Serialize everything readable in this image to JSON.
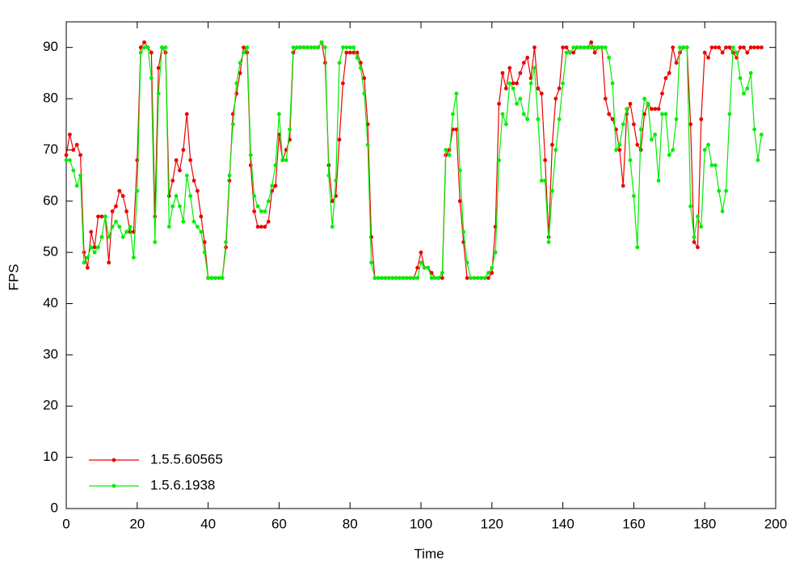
{
  "chart_data": {
    "type": "line",
    "x_label": "Time",
    "y_label": "FPS",
    "x": [
      0,
      1,
      2,
      3,
      4,
      5,
      6,
      7,
      8,
      9,
      10,
      11,
      12,
      13,
      14,
      15,
      16,
      17,
      18,
      19,
      20,
      21,
      22,
      23,
      24,
      25,
      26,
      27,
      28,
      29,
      30,
      31,
      32,
      33,
      34,
      35,
      36,
      37,
      38,
      39,
      40,
      41,
      42,
      43,
      44,
      45,
      46,
      47,
      48,
      49,
      50,
      51,
      52,
      53,
      54,
      55,
      56,
      57,
      58,
      59,
      60,
      61,
      62,
      63,
      64,
      65,
      66,
      67,
      68,
      69,
      70,
      71,
      72,
      73,
      74,
      75,
      76,
      77,
      78,
      79,
      80,
      81,
      82,
      83,
      84,
      85,
      86,
      87,
      88,
      89,
      90,
      91,
      92,
      93,
      94,
      95,
      96,
      97,
      98,
      99,
      100,
      101,
      102,
      103,
      104,
      105,
      106,
      107,
      108,
      109,
      110,
      111,
      112,
      113,
      114,
      115,
      116,
      117,
      118,
      119,
      120,
      121,
      122,
      123,
      124,
      125,
      126,
      127,
      128,
      129,
      130,
      131,
      132,
      133,
      134,
      135,
      136,
      137,
      138,
      139,
      140,
      141,
      142,
      143,
      144,
      145,
      146,
      147,
      148,
      149,
      150,
      151,
      152,
      153,
      154,
      155,
      156,
      157,
      158,
      159,
      160,
      161,
      162,
      163,
      164,
      165,
      166,
      167,
      168,
      169,
      170,
      171,
      172,
      173,
      174,
      175,
      176,
      177,
      178,
      179,
      180,
      181,
      182,
      183,
      184,
      185,
      186,
      187,
      188,
      189,
      190,
      191,
      192,
      193,
      194,
      195,
      196
    ],
    "series": [
      {
        "name": "1.5.5.60565",
        "color": "#ee0000",
        "values": [
          69,
          73,
          70,
          71,
          69,
          50,
          47,
          54,
          51,
          57,
          57,
          57,
          48,
          58,
          59,
          62,
          61,
          58,
          54,
          54,
          68,
          90,
          91,
          90,
          89,
          57,
          86,
          90,
          89,
          61,
          64,
          68,
          66,
          70,
          77,
          68,
          64,
          62,
          57,
          52,
          45,
          45,
          45,
          45,
          45,
          51,
          64,
          77,
          81,
          85,
          90,
          89,
          67,
          58,
          55,
          55,
          55,
          56,
          62,
          63,
          73,
          68,
          70,
          72,
          89,
          90,
          90,
          90,
          90,
          90,
          90,
          90,
          91,
          87,
          67,
          60,
          61,
          72,
          83,
          89,
          89,
          89,
          89,
          87,
          84,
          75,
          53,
          45,
          45,
          45,
          45,
          45,
          45,
          45,
          45,
          45,
          45,
          45,
          45,
          47,
          50,
          47,
          47,
          46,
          45,
          45,
          45,
          69,
          70,
          74,
          74,
          60,
          52,
          45,
          45,
          45,
          45,
          45,
          45,
          45,
          46,
          55,
          79,
          85,
          82,
          86,
          83,
          83,
          85,
          87,
          88,
          84,
          90,
          82,
          81,
          68,
          53,
          71,
          80,
          82,
          90,
          90,
          89,
          89,
          90,
          90,
          90,
          90,
          91,
          89,
          90,
          90,
          80,
          77,
          76,
          74,
          70,
          63,
          77,
          79,
          75,
          71,
          70,
          77,
          79,
          78,
          78,
          78,
          81,
          84,
          85,
          90,
          87,
          89,
          90,
          90,
          75,
          52,
          51,
          76,
          89,
          88,
          90,
          90,
          90,
          89,
          90,
          90,
          89,
          88,
          90,
          90,
          89,
          90,
          90,
          90,
          90
        ]
      },
      {
        "name": "1.5.6.1938",
        "color": "#00ee00",
        "values": [
          68,
          68,
          66,
          63,
          65,
          48,
          49,
          51,
          50,
          51,
          53,
          57,
          53,
          55,
          56,
          55,
          53,
          54,
          55,
          49,
          62,
          89,
          90,
          90,
          84,
          52,
          81,
          90,
          90,
          55,
          59,
          61,
          59,
          56,
          65,
          61,
          56,
          55,
          54,
          50,
          45,
          45,
          45,
          45,
          45,
          52,
          65,
          75,
          83,
          87,
          89,
          90,
          69,
          61,
          59,
          58,
          58,
          60,
          63,
          67,
          77,
          68,
          68,
          74,
          90,
          90,
          90,
          90,
          90,
          90,
          90,
          90,
          91,
          90,
          65,
          55,
          64,
          87,
          90,
          90,
          90,
          90,
          88,
          86,
          81,
          71,
          48,
          45,
          45,
          45,
          45,
          45,
          45,
          45,
          45,
          45,
          45,
          45,
          45,
          45,
          48,
          47,
          47,
          45,
          45,
          45,
          46,
          70,
          69,
          77,
          81,
          66,
          54,
          48,
          45,
          45,
          45,
          45,
          45,
          46,
          47,
          50,
          68,
          77,
          75,
          83,
          82,
          79,
          80,
          77,
          76,
          83,
          86,
          76,
          64,
          64,
          52,
          62,
          70,
          76,
          83,
          89,
          89,
          90,
          90,
          90,
          90,
          90,
          90,
          90,
          90,
          90,
          90,
          88,
          83,
          70,
          71,
          75,
          78,
          68,
          61,
          51,
          74,
          80,
          79,
          72,
          73,
          64,
          77,
          77,
          69,
          70,
          76,
          90,
          90,
          90,
          59,
          53,
          57,
          55,
          70,
          71,
          67,
          67,
          62,
          58,
          62,
          77,
          90,
          89,
          84,
          81,
          82,
          85,
          74,
          68,
          73
        ]
      }
    ],
    "xlim": [
      0,
      200
    ],
    "xticks": [
      0,
      20,
      40,
      60,
      80,
      100,
      120,
      140,
      160,
      180,
      200
    ],
    "ylim": [
      0,
      95
    ],
    "yticks": [
      0,
      10,
      20,
      30,
      40,
      50,
      60,
      70,
      80,
      90
    ],
    "legend": "bottom-left"
  }
}
